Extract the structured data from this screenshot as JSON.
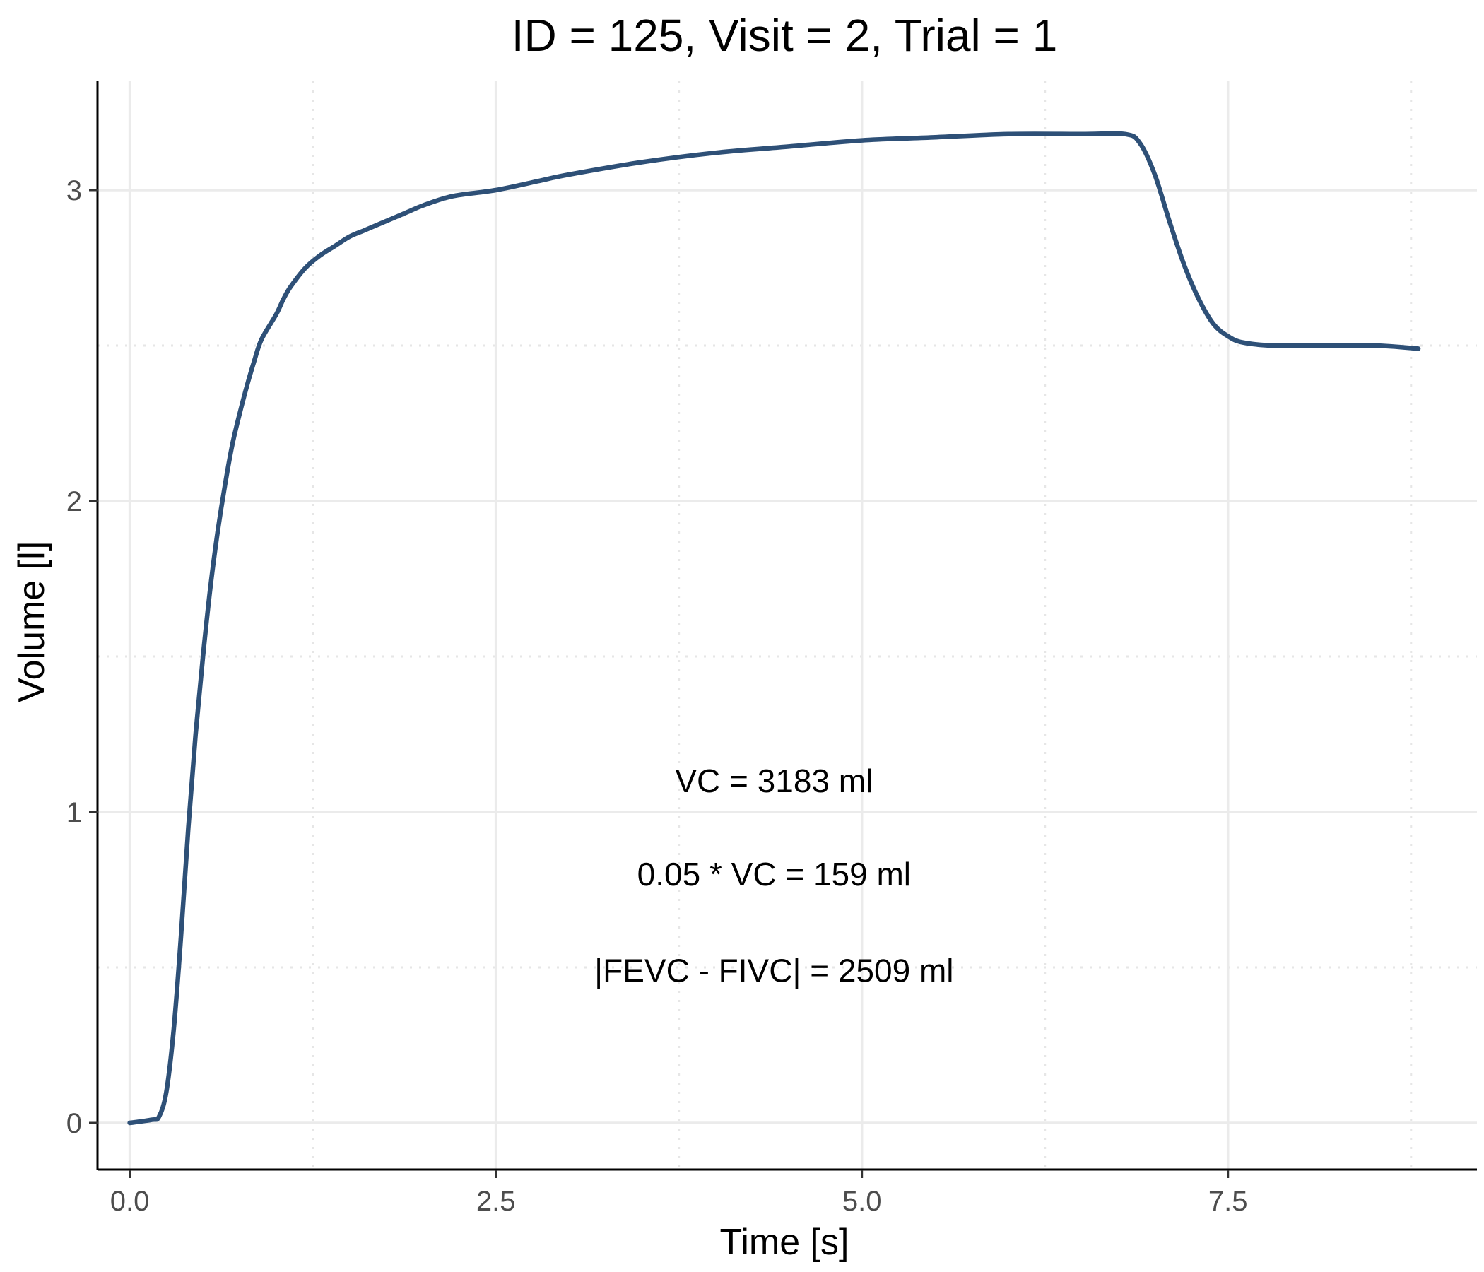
{
  "chart_data": {
    "type": "line",
    "title": "ID = 125, Visit = 2, Trial = 1",
    "xlabel": "Time [s]",
    "ylabel": "Volume [l]",
    "xlim": [
      -0.22,
      9.2
    ],
    "ylim": [
      -0.15,
      3.35
    ],
    "x_ticks": [
      0.0,
      2.5,
      5.0,
      7.5
    ],
    "x_tick_labels": [
      "0.0",
      "2.5",
      "5.0",
      "7.5"
    ],
    "y_ticks": [
      0,
      1,
      2,
      3
    ],
    "y_tick_labels": [
      "0",
      "1",
      "2",
      "3"
    ],
    "x_minor_ticks": [
      1.25,
      3.75,
      6.25,
      8.75
    ],
    "y_minor_ticks": [
      0.5,
      1.5,
      2.5
    ],
    "grid": true,
    "line_color": "#2E5077",
    "series": [
      {
        "x": [
          0.0,
          0.15,
          0.2,
          0.25,
          0.3,
          0.35,
          0.4,
          0.45,
          0.5,
          0.55,
          0.6,
          0.65,
          0.7,
          0.75,
          0.8,
          0.85,
          0.9,
          1.0,
          1.05,
          1.1,
          1.2,
          1.3,
          1.4,
          1.5,
          1.6,
          1.7,
          1.8,
          1.9,
          2.0,
          2.2,
          2.5,
          2.8,
          3.0,
          3.5,
          4.0,
          4.5,
          5.0,
          5.5,
          6.0,
          6.5,
          6.8,
          6.9,
          7.0,
          7.1,
          7.2,
          7.3,
          7.4,
          7.5,
          7.6,
          7.8,
          8.0,
          8.5,
          8.8
        ],
        "y": [
          0.0,
          0.01,
          0.02,
          0.1,
          0.3,
          0.6,
          0.95,
          1.25,
          1.5,
          1.72,
          1.9,
          2.05,
          2.18,
          2.28,
          2.37,
          2.45,
          2.52,
          2.6,
          2.65,
          2.69,
          2.75,
          2.79,
          2.82,
          2.85,
          2.87,
          2.89,
          2.91,
          2.93,
          2.95,
          2.98,
          3.0,
          3.03,
          3.05,
          3.09,
          3.12,
          3.14,
          3.16,
          3.17,
          3.18,
          3.18,
          3.18,
          3.15,
          3.05,
          2.9,
          2.76,
          2.65,
          2.57,
          2.53,
          2.51,
          2.5,
          2.5,
          2.5,
          2.49
        ]
      }
    ],
    "annotations": [
      {
        "text": "VC = 3183 ml",
        "x": 4.4,
        "y": 1.1
      },
      {
        "text": "0.05 * VC = 159 ml",
        "x": 4.4,
        "y": 0.8
      },
      {
        "text": "|FEVC - FIVC| = 2509 ml",
        "x": 4.4,
        "y": 0.49
      }
    ]
  }
}
